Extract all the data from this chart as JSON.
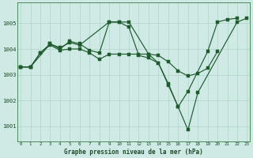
{
  "background_color": "#cfe9e5",
  "line_color": "#1e5c2e",
  "xlabel": "Graphe pression niveau de la mer (hPa)",
  "ytick_labels": [
    "1001",
    "1002",
    "1003",
    "1004",
    "1005"
  ],
  "ytick_vals": [
    1001,
    1002,
    1003,
    1004,
    1005
  ],
  "xlim": [
    -0.3,
    23.3
  ],
  "ylim": [
    1000.4,
    1005.8
  ],
  "line1_x": [
    0,
    1,
    2,
    3,
    4,
    5,
    6,
    7,
    8,
    9,
    10,
    11,
    12,
    13,
    14,
    15,
    16,
    17,
    19,
    20,
    21,
    22
  ],
  "line1_y": [
    1003.3,
    1003.3,
    1003.85,
    1004.2,
    1004.0,
    1004.3,
    1004.2,
    1003.95,
    1003.85,
    1005.05,
    1005.05,
    1004.85,
    1003.75,
    1003.65,
    1003.45,
    1002.6,
    1001.75,
    1002.35,
    1003.9,
    1005.05,
    1005.15,
    1005.2
  ],
  "line2_x": [
    0,
    1,
    2,
    3,
    4,
    5,
    6,
    7,
    8,
    9,
    10,
    11,
    12,
    13,
    14,
    15,
    16,
    17,
    18,
    19,
    20
  ],
  "line2_y": [
    1003.3,
    1003.3,
    1003.85,
    1004.15,
    1003.95,
    1004.0,
    1004.0,
    1003.85,
    1003.6,
    1003.8,
    1003.8,
    1003.8,
    1003.8,
    1003.8,
    1003.75,
    1003.5,
    1003.15,
    1002.95,
    1003.05,
    1003.25,
    1003.9
  ],
  "line3_x": [
    0,
    1,
    3,
    4,
    5,
    6,
    9,
    10,
    11,
    13,
    14,
    15,
    16,
    17,
    18,
    22,
    23
  ],
  "line3_y": [
    1003.3,
    1003.3,
    1004.2,
    1004.05,
    1004.25,
    1004.15,
    1005.05,
    1005.05,
    1005.05,
    1003.8,
    1003.45,
    1002.65,
    1001.75,
    1000.85,
    1002.3,
    1005.05,
    1005.2
  ]
}
